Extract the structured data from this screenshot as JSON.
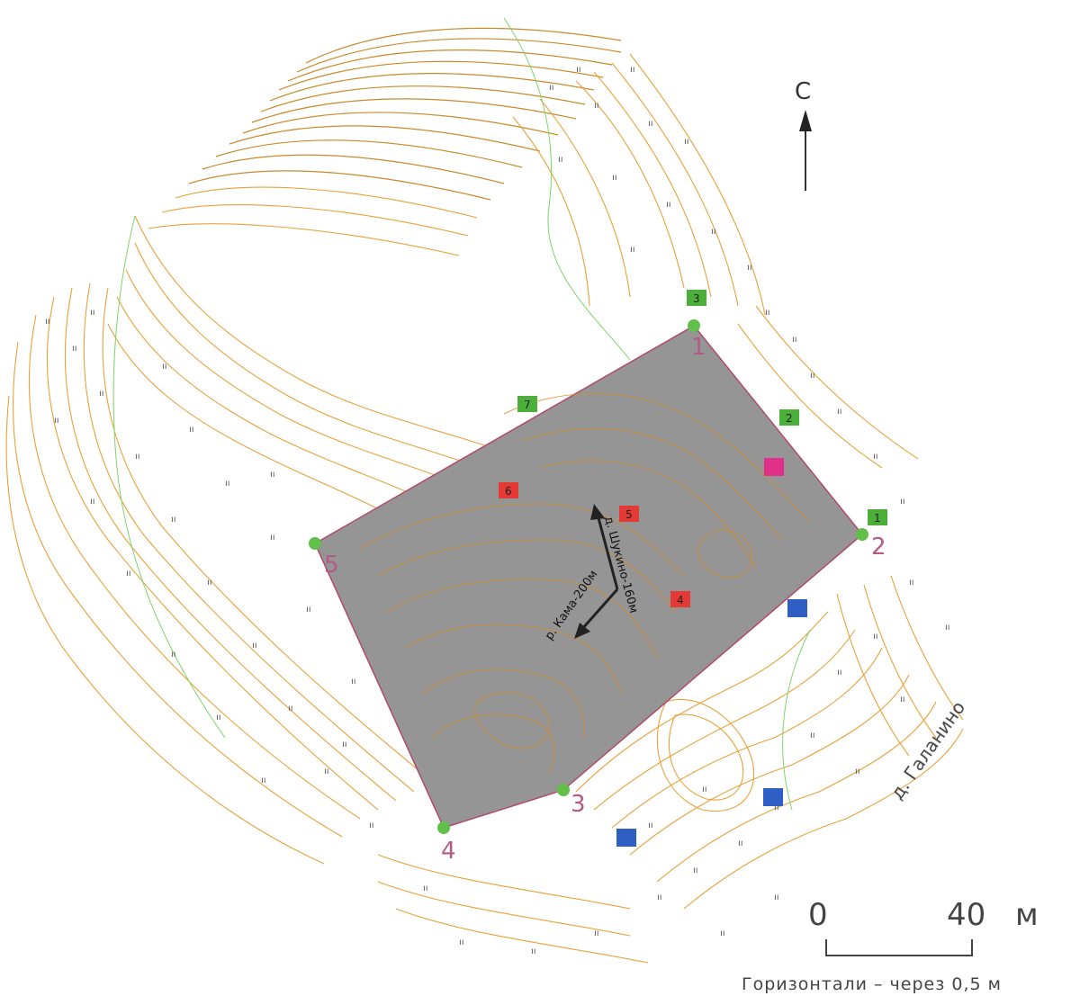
{
  "map": {
    "north_label": "С",
    "village_label": "д. Галанино",
    "road_label_1": "д. Шукино-160м",
    "road_label_2": "р. Кама-200м",
    "scale": {
      "zero": "0",
      "end": "40",
      "unit": "м"
    },
    "contour_note": "Горизонтали – через 0,5 м",
    "meadow_symbol": "ıı"
  },
  "site": {
    "vertex_labels": [
      "1",
      "2",
      "3",
      "4",
      "5"
    ]
  },
  "markers": {
    "green": [
      "1",
      "2",
      "3",
      "7"
    ],
    "red": [
      "4",
      "5",
      "6"
    ],
    "blue_count": 3,
    "pink_count": 1
  },
  "colors": {
    "contour": "#e8a23a",
    "site_fill": "#959595",
    "site_border": "#b04a6a",
    "vertex": "#62c04a",
    "green_marker": "#4caf3a",
    "red_marker": "#e53935",
    "blue_marker": "#2f5fc4",
    "pink_marker": "#e0308a",
    "stream": "#7fd46a"
  }
}
